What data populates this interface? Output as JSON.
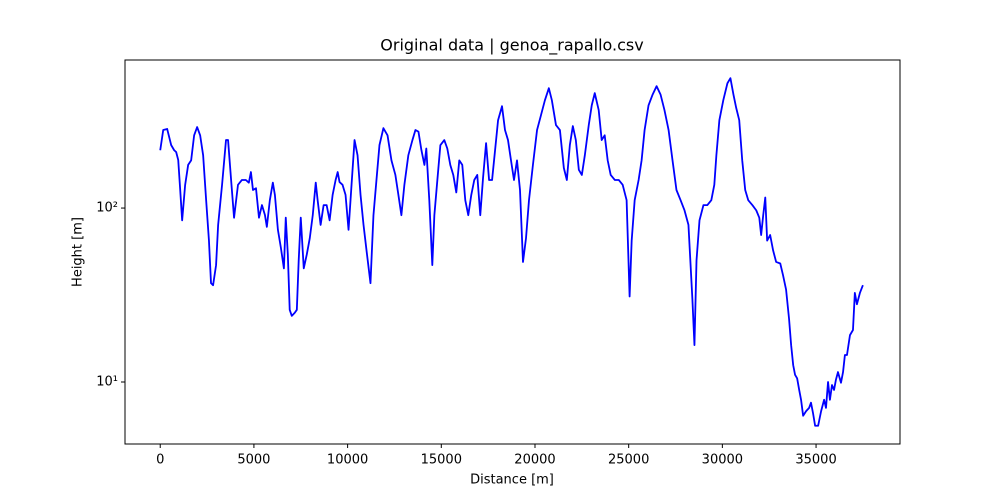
{
  "chart_data": {
    "type": "line",
    "title": "Original data | genoa_rapallo.csv",
    "x_label": "Distance [m]",
    "y_label": "Height [m]",
    "color": "#0000ff",
    "yscale": "log",
    "xlim": [
      -1880,
      39480
    ],
    "ylim": [
      4.4,
      710
    ],
    "xticks": [
      0,
      5000,
      10000,
      15000,
      20000,
      25000,
      30000,
      35000
    ],
    "yticks": [
      {
        "value": 10,
        "label": "10¹"
      },
      {
        "value": 100,
        "label": "10²"
      }
    ],
    "x": [
      0,
      160,
      370,
      585,
      745,
      850,
      960,
      1060,
      1170,
      1330,
      1490,
      1650,
      1810,
      1970,
      2130,
      2290,
      2450,
      2600,
      2710,
      2820,
      2980,
      3090,
      3300,
      3510,
      3620,
      3780,
      3940,
      4150,
      4360,
      4570,
      4730,
      4840,
      4950,
      5110,
      5270,
      5430,
      5590,
      5690,
      5850,
      6010,
      6120,
      6280,
      6440,
      6600,
      6700,
      6810,
      6910,
      7020,
      7180,
      7290,
      7390,
      7500,
      7660,
      7820,
      7980,
      8140,
      8300,
      8400,
      8560,
      8720,
      8880,
      9040,
      9200,
      9360,
      9470,
      9570,
      9730,
      9890,
      10050,
      10210,
      10370,
      10530,
      10690,
      10850,
      11010,
      11220,
      11380,
      11540,
      11700,
      11910,
      12130,
      12340,
      12550,
      12710,
      12870,
      13030,
      13240,
      13460,
      13620,
      13780,
      13940,
      14100,
      14200,
      14360,
      14520,
      14630,
      14790,
      14950,
      15160,
      15320,
      15480,
      15640,
      15800,
      15960,
      16120,
      16280,
      16440,
      16600,
      16760,
      16920,
      17080,
      17230,
      17390,
      17550,
      17710,
      17870,
      18030,
      18240,
      18400,
      18560,
      18720,
      18880,
      19040,
      19200,
      19360,
      19520,
      19680,
      19890,
      20110,
      20320,
      20530,
      20740,
      20900,
      21120,
      21330,
      21540,
      21700,
      21860,
      22020,
      22180,
      22340,
      22500,
      22660,
      22870,
      23030,
      23190,
      23400,
      23560,
      23720,
      23880,
      24040,
      24260,
      24470,
      24680,
      24890,
      25050,
      25160,
      25320,
      25530,
      25690,
      25850,
      26060,
      26280,
      26490,
      26700,
      26910,
      27130,
      27340,
      27550,
      27770,
      27980,
      28190,
      28400,
      28510,
      28620,
      28780,
      28990,
      29200,
      29410,
      29570,
      29680,
      29840,
      30050,
      30270,
      30430,
      30590,
      30740,
      30900,
      31060,
      31220,
      31380,
      31600,
      31810,
      31970,
      32070,
      32180,
      32290,
      32390,
      32550,
      32710,
      32870,
      33090,
      33240,
      33400,
      33560,
      33670,
      33780,
      33880,
      33990,
      34100,
      34200,
      34310,
      34470,
      34630,
      34730,
      34840,
      34950,
      35110,
      35270,
      35430,
      35530,
      35640,
      35740,
      35850,
      35960,
      36060,
      36170,
      36330,
      36440,
      36540,
      36650,
      36810,
      36970,
      37070,
      37180,
      37340,
      37500
    ],
    "values": [
      215,
      281,
      285,
      230,
      215,
      210,
      189,
      130,
      85,
      136,
      177,
      188,
      262,
      292,
      262,
      201,
      111,
      65,
      37,
      36,
      47,
      80,
      136,
      246,
      246,
      146,
      88,
      136,
      145,
      145,
      140,
      161,
      127,
      130,
      88,
      104,
      91,
      78,
      111,
      140,
      119,
      75,
      59,
      45,
      88,
      54,
      26,
      24,
      25,
      26,
      50,
      88,
      45,
      54,
      67,
      91,
      140,
      111,
      80,
      104,
      104,
      85,
      119,
      145,
      161,
      141,
      136,
      119,
      75,
      136,
      246,
      201,
      119,
      80,
      57,
      37,
      91,
      145,
      230,
      288,
      262,
      188,
      155,
      119,
      91,
      136,
      201,
      246,
      281,
      275,
      215,
      177,
      220,
      111,
      47,
      91,
      145,
      230,
      246,
      220,
      177,
      155,
      123,
      188,
      177,
      111,
      91,
      119,
      145,
      155,
      91,
      150,
      236,
      145,
      145,
      215,
      320,
      385,
      281,
      246,
      188,
      145,
      188,
      127,
      49,
      67,
      111,
      177,
      281,
      342,
      417,
      489,
      417,
      300,
      281,
      170,
      145,
      230,
      296,
      246,
      166,
      155,
      201,
      300,
      390,
      458,
      366,
      246,
      262,
      188,
      155,
      145,
      145,
      136,
      111,
      31,
      65,
      111,
      145,
      188,
      281,
      390,
      450,
      502,
      450,
      366,
      281,
      188,
      127,
      111,
      97,
      80,
      30,
      16.3,
      50,
      85,
      104,
      104,
      111,
      136,
      201,
      320,
      417,
      522,
      558,
      450,
      376,
      320,
      188,
      127,
      111,
      104,
      97,
      88,
      70,
      91,
      115,
      65,
      70,
      57,
      49,
      48,
      41,
      34,
      23,
      16.3,
      12.5,
      11,
      10.5,
      9,
      7.9,
      6.4,
      6.8,
      7.1,
      7.6,
      6.6,
      5.6,
      5.6,
      6.8,
      7.9,
      7.1,
      10,
      7.9,
      9.6,
      9,
      10.3,
      11.4,
      9.9,
      11.4,
      14.3,
      14.3,
      18.6,
      19.9,
      32.5,
      28,
      32.5,
      36
    ]
  }
}
